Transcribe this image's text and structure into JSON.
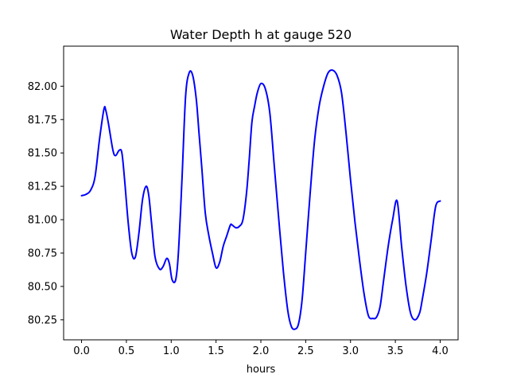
{
  "chart_data": {
    "type": "line",
    "title": "Water Depth h at gauge 520",
    "xlabel": "hours",
    "ylabel": "",
    "xlim": [
      -0.2,
      4.2
    ],
    "ylim": [
      80.1,
      82.3
    ],
    "xticks": [
      0.0,
      0.5,
      1.0,
      1.5,
      2.0,
      2.5,
      3.0,
      3.5,
      4.0
    ],
    "xtick_labels": [
      "0.0",
      "0.5",
      "1.0",
      "1.5",
      "2.0",
      "2.5",
      "3.0",
      "3.5",
      "4.0"
    ],
    "yticks": [
      80.25,
      80.5,
      80.75,
      81.0,
      81.25,
      81.5,
      81.75,
      82.0
    ],
    "ytick_labels": [
      "80.25",
      "80.50",
      "80.75",
      "81.00",
      "81.25",
      "81.50",
      "81.75",
      "82.00"
    ],
    "grid": false,
    "series": [
      {
        "color": "#0000ff",
        "x": [
          0.0,
          0.05,
          0.1,
          0.15,
          0.2,
          0.25,
          0.27,
          0.3,
          0.35,
          0.38,
          0.42,
          0.45,
          0.48,
          0.52,
          0.56,
          0.6,
          0.64,
          0.68,
          0.72,
          0.75,
          0.78,
          0.82,
          0.87,
          0.91,
          0.95,
          0.98,
          1.01,
          1.05,
          1.08,
          1.12,
          1.16,
          1.2,
          1.24,
          1.28,
          1.31,
          1.34,
          1.38,
          1.42,
          1.46,
          1.5,
          1.54,
          1.58,
          1.62,
          1.66,
          1.68,
          1.72,
          1.76,
          1.8,
          1.84,
          1.87,
          1.9,
          1.93,
          1.96,
          2.0,
          2.05,
          2.1,
          2.15,
          2.2,
          2.25,
          2.3,
          2.34,
          2.38,
          2.42,
          2.46,
          2.5,
          2.55,
          2.6,
          2.65,
          2.7,
          2.75,
          2.8,
          2.85,
          2.9,
          2.95,
          3.0,
          3.05,
          3.1,
          3.15,
          3.2,
          3.25,
          3.29,
          3.33,
          3.37,
          3.42,
          3.47,
          3.52,
          3.57,
          3.62,
          3.67,
          3.72,
          3.77,
          3.8,
          3.85,
          3.9,
          3.95,
          4.0
        ],
        "y": [
          81.18,
          81.19,
          81.22,
          81.32,
          81.6,
          81.83,
          81.82,
          81.72,
          81.52,
          81.48,
          81.52,
          81.5,
          81.3,
          80.98,
          80.75,
          80.72,
          80.9,
          81.15,
          81.25,
          81.18,
          80.98,
          80.72,
          80.63,
          80.65,
          80.71,
          80.67,
          80.55,
          80.55,
          80.75,
          81.3,
          81.92,
          82.1,
          82.08,
          81.9,
          81.65,
          81.4,
          81.05,
          80.88,
          80.75,
          80.64,
          80.68,
          80.8,
          80.88,
          80.96,
          80.96,
          80.94,
          80.95,
          81.0,
          81.2,
          81.45,
          81.73,
          81.85,
          81.95,
          82.02,
          81.98,
          81.8,
          81.4,
          81.0,
          80.62,
          80.32,
          80.2,
          80.18,
          80.22,
          80.4,
          80.75,
          81.2,
          81.6,
          81.85,
          82.0,
          82.1,
          82.12,
          82.08,
          81.95,
          81.65,
          81.3,
          80.98,
          80.7,
          80.45,
          80.28,
          80.26,
          80.27,
          80.35,
          80.55,
          80.8,
          81.0,
          81.14,
          80.8,
          80.5,
          80.3,
          80.25,
          80.3,
          80.4,
          80.6,
          80.85,
          81.1,
          81.14
        ]
      }
    ]
  }
}
